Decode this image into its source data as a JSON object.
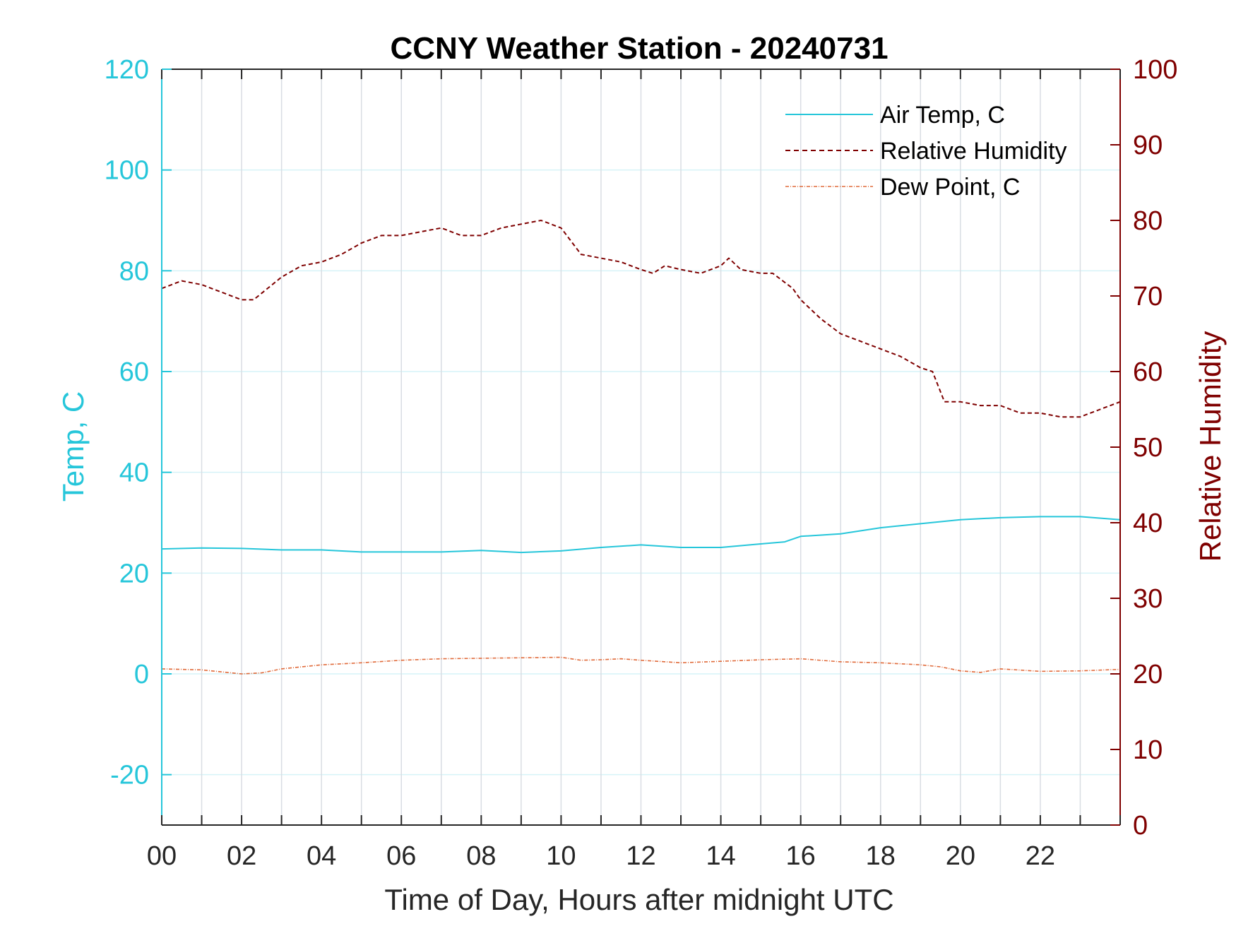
{
  "colors": {
    "air_temp": "#26c6da",
    "humidity": "#7f0000",
    "dew_point": "#e06a3a",
    "left_axis": "#26c6da",
    "right_axis": "#7f0000",
    "x_axis": "#262626",
    "grid_vertical": "#d9dde3",
    "grid_horizontal": "#d6f3f8"
  },
  "chart_data": {
    "type": "line",
    "title": "CCNY Weather Station - 20240731",
    "xlabel": "Time of Day, Hours after midnight UTC",
    "ylabel_left": "Temp, C",
    "ylabel_right": "Relative Humidity",
    "xlim": [
      0,
      24
    ],
    "ylim_left": [
      -30,
      120
    ],
    "ylim_right": [
      0,
      100
    ],
    "x_ticks": [
      0,
      2,
      4,
      6,
      8,
      10,
      12,
      14,
      16,
      18,
      20,
      22
    ],
    "x_tick_labels": [
      "00",
      "02",
      "04",
      "06",
      "08",
      "10",
      "12",
      "14",
      "16",
      "18",
      "20",
      "22"
    ],
    "y_left_ticks": [
      120,
      100,
      80,
      60,
      40,
      20,
      0,
      -20
    ],
    "y_right_ticks": [
      100,
      90,
      80,
      70,
      60,
      50,
      40,
      30,
      20,
      10,
      0
    ],
    "grid": true,
    "legend_position": "top-right",
    "series": [
      {
        "name": "Air Temp, C",
        "axis": "left",
        "style": "solid",
        "x": [
          0,
          1,
          2,
          3,
          4,
          5,
          6,
          7,
          8,
          9,
          10,
          11,
          12,
          13,
          14,
          15,
          15.6,
          16,
          17,
          18,
          19,
          20,
          21,
          22,
          23,
          24
        ],
        "y": [
          24.8,
          25.0,
          24.9,
          24.6,
          24.6,
          24.2,
          24.2,
          24.2,
          24.5,
          24.1,
          24.4,
          25.1,
          25.6,
          25.1,
          25.1,
          25.8,
          26.2,
          27.3,
          27.8,
          29.0,
          29.8,
          30.6,
          31.0,
          31.2,
          31.2,
          30.6
        ]
      },
      {
        "name": "Relative Humidity",
        "axis": "right",
        "style": "dashed",
        "x": [
          0,
          0.5,
          1,
          1.5,
          2,
          2.3,
          3,
          3.5,
          4,
          4.5,
          5,
          5.5,
          6,
          6.5,
          7,
          7.5,
          8,
          8.5,
          9,
          9.5,
          10,
          10.5,
          11,
          11.5,
          12,
          12.3,
          12.6,
          13,
          13.5,
          14,
          14.2,
          14.5,
          15,
          15.3,
          15.8,
          16,
          16.5,
          17,
          17.5,
          18,
          18.5,
          19,
          19.3,
          19.6,
          20,
          20.5,
          21,
          21.5,
          22,
          22.5,
          23,
          23.5,
          24
        ],
        "y": [
          71,
          72,
          71.5,
          70.5,
          69.5,
          69.5,
          72.5,
          74,
          74.5,
          75.5,
          77,
          78,
          78,
          78.5,
          79,
          78,
          78,
          79,
          79.5,
          80,
          79,
          75.5,
          75,
          74.5,
          73.5,
          73,
          74,
          73.5,
          73,
          74,
          75,
          73.5,
          73,
          73,
          71,
          69.5,
          67,
          65,
          64,
          63,
          62,
          60.5,
          60,
          56,
          56,
          55.5,
          55.5,
          54.5,
          54.5,
          54,
          54,
          55,
          56
        ]
      },
      {
        "name": "Dew Point, C",
        "axis": "left",
        "style": "dash-dot",
        "x": [
          0,
          1,
          2,
          2.5,
          3,
          4,
          5,
          6,
          7,
          8,
          9,
          10,
          10.5,
          11,
          11.5,
          12,
          13,
          14,
          15,
          16,
          17,
          18,
          19,
          19.5,
          20,
          20.5,
          21,
          22,
          23,
          24
        ],
        "y": [
          1,
          0.8,
          0,
          0.2,
          1,
          1.8,
          2.2,
          2.7,
          3.0,
          3.1,
          3.2,
          3.3,
          2.7,
          2.8,
          3.0,
          2.7,
          2.2,
          2.5,
          2.8,
          3.0,
          2.4,
          2.2,
          1.8,
          1.4,
          0.6,
          0.3,
          1.0,
          0.5,
          0.6,
          0.9
        ]
      }
    ]
  }
}
